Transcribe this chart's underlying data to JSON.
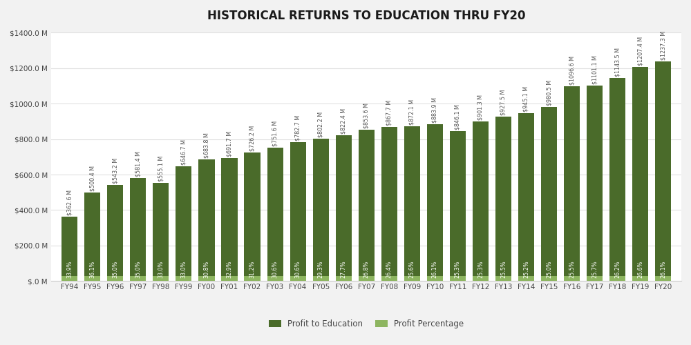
{
  "title": "HISTORICAL RETURNS TO EDUCATION THRU FY20",
  "categories": [
    "FY94",
    "FY95",
    "FY96",
    "FY97",
    "FY98",
    "FY99",
    "FY00",
    "FY01",
    "FY02",
    "FY03",
    "FY04",
    "FY05",
    "FY06",
    "FY07",
    "FY08",
    "FY09",
    "FY10",
    "FY11",
    "FY12",
    "FY13",
    "FY14",
    "FY15",
    "FY16",
    "FY17",
    "FY18",
    "FY19",
    "FY20"
  ],
  "values": [
    362.6,
    500.4,
    543.2,
    581.4,
    555.1,
    646.7,
    683.8,
    691.7,
    726.2,
    751.6,
    782.7,
    802.2,
    822.4,
    853.6,
    867.7,
    872.1,
    883.9,
    846.1,
    901.3,
    927.5,
    945.1,
    980.5,
    1096.6,
    1101.1,
    1143.5,
    1207.4,
    1237.3
  ],
  "percentages": [
    "33.9%",
    "36.1%",
    "35.0%",
    "35.0%",
    "33.0%",
    "33.0%",
    "30.8%",
    "32.9%",
    "31.2%",
    "30.6%",
    "30.6%",
    "29.3%",
    "27.7%",
    "26.8%",
    "26.4%",
    "25.6%",
    "26.1%",
    "25.3%",
    "25.3%",
    "25.5%",
    "25.2%",
    "25.0%",
    "25.5%",
    "25.7%",
    "26.2%",
    "26.6%",
    "26.1%"
  ],
  "value_labels": [
    "$362.6 M",
    "$500.4 M",
    "$543.2 M",
    "$581.4 M",
    "$555.1 M",
    "$646.7 M",
    "$683.8 M",
    "$691.7 M",
    "$726.2 M",
    "$751.6 M",
    "$782.7 M",
    "$802.2 M",
    "$822.4 M",
    "$853.6 M",
    "$867.7 M",
    "$872.1 M",
    "$883.9 M",
    "$846.1 M",
    "$901.3 M",
    "$927.5 M",
    "$945.1 M",
    "$980.5 M",
    "$1096.6 M",
    "$1101.1 M",
    "$1143.5 M",
    "$1207.4 M",
    "$1237.3 M"
  ],
  "bar_color_dark": "#4a6b2a",
  "bar_color_light": "#8db560",
  "background_color": "#f2f2f2",
  "plot_bg_color": "#ffffff",
  "ylim": [
    0,
    1400
  ],
  "ytick_values": [
    0,
    200,
    400,
    600,
    800,
    1000,
    1200,
    1400
  ],
  "ytick_labels": [
    "$.0 M",
    "$200.0 M",
    "$400.0 M",
    "$600.0 M",
    "$800.0 M",
    "$1000.0 M",
    "$1200.0 M",
    "$1400.0 M"
  ],
  "legend_profit_education": "Profit to Education",
  "legend_profit_percentage": "Profit Percentage",
  "title_fontsize": 12,
  "label_fontsize": 5.8,
  "tick_fontsize": 7.5
}
